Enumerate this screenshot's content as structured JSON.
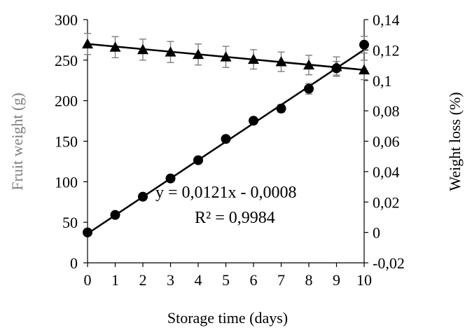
{
  "chart_data": {
    "type": "line",
    "xlabel": "Storage time (days)",
    "ylabel_left": "Fruit weight (g)",
    "ylabel_right": "Weight loss (%)",
    "xlim": [
      0,
      10
    ],
    "ylim_left": [
      0,
      300
    ],
    "ylim_right": [
      -0.02,
      0.14
    ],
    "x_ticks": [
      "0",
      "1",
      "2",
      "3",
      "4",
      "5",
      "6",
      "7",
      "8",
      "9",
      "10"
    ],
    "y_left_ticks": [
      "0",
      "50",
      "100",
      "150",
      "200",
      "250",
      "300"
    ],
    "y_right_ticks": [
      "-0,02",
      "0",
      "0,02",
      "0,04",
      "0,06",
      "0,08",
      "0,1",
      "0,12",
      "0,14"
    ],
    "grid": false,
    "series": [
      {
        "marker": "triangle",
        "axis": "left",
        "x": [
          0,
          1,
          2,
          3,
          4,
          5,
          6,
          7,
          8,
          9,
          10
        ],
        "values": [
          270,
          266,
          263,
          260,
          257,
          254,
          251,
          248,
          244,
          242,
          238
        ],
        "errors": [
          13,
          13,
          13,
          13,
          13,
          13,
          12,
          12,
          12,
          12,
          12
        ]
      },
      {
        "marker": "circle",
        "axis": "right",
        "x": [
          0,
          1,
          2,
          3,
          4,
          5,
          6,
          7,
          8,
          9,
          10
        ],
        "values": [
          0.0,
          0.0115,
          0.0235,
          0.0355,
          0.0475,
          0.0615,
          0.0735,
          0.0815,
          0.0945,
          0.108,
          0.1235
        ],
        "errors": [
          0.0,
          0.0,
          0.0,
          0.0,
          0.0,
          0.0015,
          0.0015,
          0.0025,
          0.0035,
          0.0045,
          0.0055
        ]
      }
    ],
    "trendline": {
      "slope": 0.0121,
      "intercept": -0.0008,
      "axis": "right"
    },
    "annotations": {
      "equation": "y = 0,0121x - 0,0008",
      "r2": "R² = 0,9984"
    }
  }
}
